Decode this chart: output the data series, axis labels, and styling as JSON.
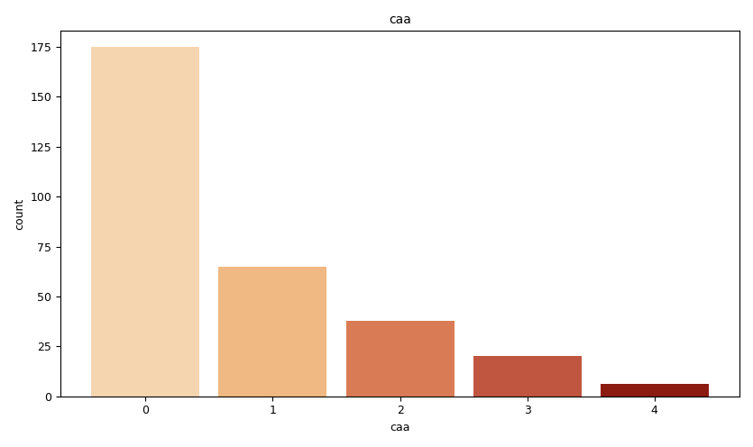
{
  "title": "caa",
  "xlabel": "caa",
  "ylabel": "count",
  "categories": [
    "0",
    "1",
    "2",
    "3",
    "4"
  ],
  "values": [
    175,
    65,
    38,
    20,
    6
  ],
  "bar_colors": [
    "#f5d5b0",
    "#f0b882",
    "#d97c55",
    "#c05540",
    "#8b1a10"
  ],
  "ylim": [
    0,
    183
  ],
  "figsize": [
    8.35,
    4.96
  ],
  "dpi": 100,
  "background_color": "#ffffff",
  "title_fontsize": 10,
  "axis_label_fontsize": 9,
  "tick_fontsize": 9,
  "bar_width": 0.85
}
